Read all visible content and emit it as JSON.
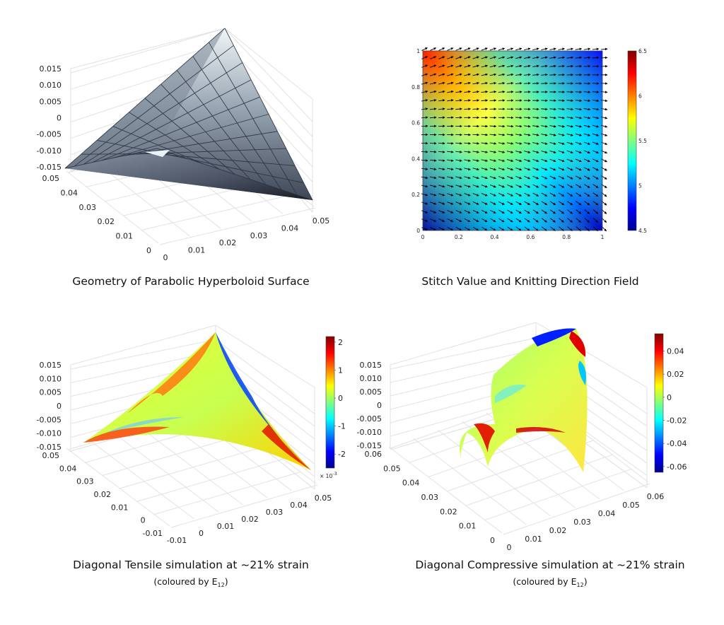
{
  "chart_data": [
    {
      "type": "surface",
      "caption": "Geometry of Parabolic Hyperboloid Surface",
      "xlim": [
        0,
        0.05
      ],
      "ylim": [
        0,
        0.05
      ],
      "zlim": [
        -0.015,
        0.015
      ],
      "x_ticks": [
        "0",
        "0.01",
        "0.02",
        "0.03",
        "0.04",
        "0.05"
      ],
      "y_ticks": [
        "0",
        "0.01",
        "0.02",
        "0.03",
        "0.04",
        "0.05"
      ],
      "z_ticks": [
        "-0.015",
        "-0.010",
        "-0.005",
        "0",
        "0.005",
        "0.010",
        "0.015"
      ],
      "colormap": "bone",
      "grid": true
    },
    {
      "type": "heatmap",
      "caption": "Stitch Value and Knitting Direction Field",
      "xlim": [
        0,
        1
      ],
      "ylim": [
        0,
        1
      ],
      "x_ticks": [
        "0",
        "0.2",
        "0.4",
        "0.6",
        "0.8",
        "1"
      ],
      "y_ticks": [
        "0",
        "0.2",
        "0.4",
        "0.6",
        "0.8",
        "1"
      ],
      "colorbar_ticks": [
        "4.5",
        "5",
        "5.5",
        "6",
        "6.5"
      ],
      "clim": [
        4.5,
        6.5
      ],
      "colormap": "jet",
      "quiver": true
    },
    {
      "type": "surface",
      "caption": "Diagonal Tensile simulation at ~21% strain",
      "subcaption_prefix": "(coloured by E",
      "subcaption_sub": "12",
      "subcaption_suffix": ")",
      "xlim": [
        -0.01,
        0.05
      ],
      "ylim": [
        -0.01,
        0.05
      ],
      "zlim": [
        -0.015,
        0.015
      ],
      "x_ticks": [
        "-0.01",
        "0",
        "0.01",
        "0.02",
        "0.03",
        "0.04",
        "0.05"
      ],
      "y_ticks": [
        "-0.01",
        "0",
        "0.01",
        "0.02",
        "0.03",
        "0.04",
        "0.05"
      ],
      "z_ticks": [
        "-0.015",
        "-0.010",
        "-0.005",
        "0",
        "0.005",
        "0.010",
        "0.015"
      ],
      "colorbar_ticks": [
        "-2",
        "-1",
        "0",
        "1",
        "2"
      ],
      "colorbar_exponent": "× 10",
      "colorbar_exponent_power": "-3",
      "clim": [
        -0.0025,
        0.0022
      ],
      "colormap": "jet"
    },
    {
      "type": "surface",
      "caption": "Diagonal Compressive simulation at ~21% strain",
      "subcaption_prefix": "(coloured by E",
      "subcaption_sub": "12",
      "subcaption_suffix": ")",
      "xlim": [
        0,
        0.06
      ],
      "ylim": [
        0,
        0.06
      ],
      "zlim": [
        -0.015,
        0.015
      ],
      "x_ticks": [
        "0",
        "0.01",
        "0.02",
        "0.03",
        "0.04",
        "0.05",
        "0.06"
      ],
      "y_ticks": [
        "0",
        "0.01",
        "0.02",
        "0.03",
        "0.04",
        "0.05",
        "0.06"
      ],
      "z_ticks": [
        "-0.015",
        "-0.010",
        "-0.005",
        "0",
        "0.005",
        "0.010",
        "0.015"
      ],
      "colorbar_ticks": [
        "-0.06",
        "-0.04",
        "-0.02",
        "0",
        "0.02",
        "0.04"
      ],
      "clim": [
        -0.065,
        0.055
      ],
      "colormap": "jet"
    }
  ],
  "colors": {
    "jet": [
      "#00008f",
      "#0000ff",
      "#0080ff",
      "#00ffff",
      "#80ff80",
      "#ffff00",
      "#ff8000",
      "#ff0000",
      "#800000"
    ],
    "bone_light": "#e6eef2",
    "bone_dark": "#1a1e26"
  }
}
